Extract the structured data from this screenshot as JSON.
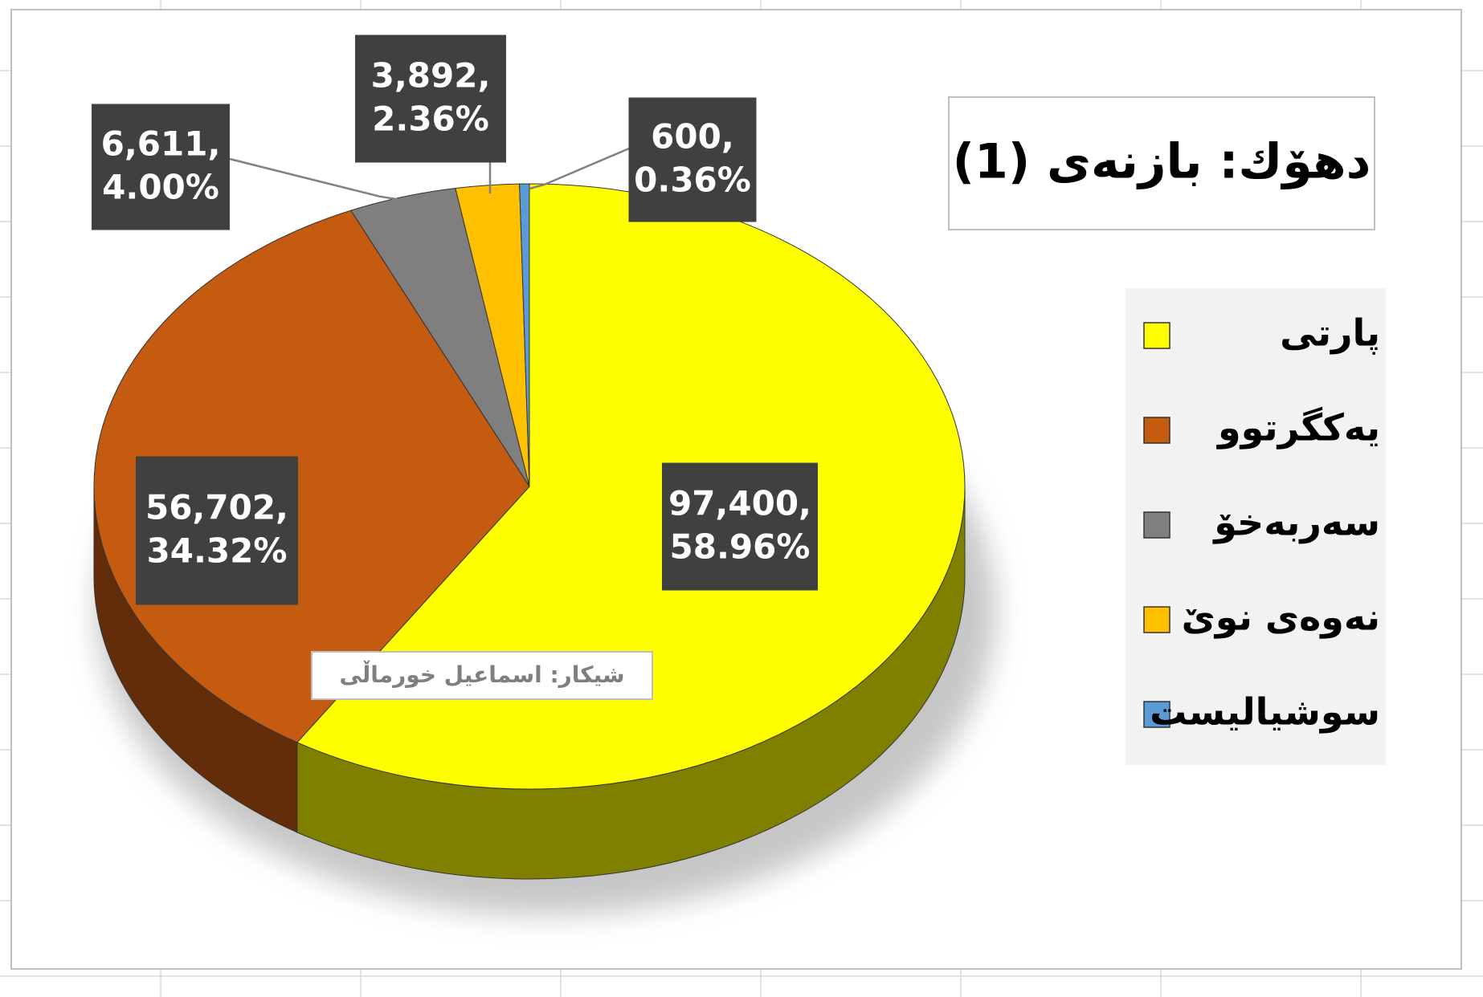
{
  "chart_data": {
    "type": "pie",
    "title": "دهۆك: بازنەی (1)",
    "categories": [
      "پارتی",
      "یەکگرتوو",
      "سەربەخۆ",
      "نەوەی نوێ",
      "سوشیالیست"
    ],
    "values": [
      97400,
      56702,
      6611,
      3892,
      600
    ],
    "value_labels": [
      "97,400,",
      "56,702,",
      "6,611,",
      "3,892,",
      "600,"
    ],
    "percentages": [
      58.96,
      34.32,
      4.0,
      2.36,
      0.36
    ],
    "percentage_labels": [
      "58.96%",
      "34.32%",
      "4.00%",
      "2.36%",
      "0.36%"
    ],
    "colors": [
      "#ffff00",
      "#c55a11",
      "#7f7f7f",
      "#ffc000",
      "#5b9bd5"
    ],
    "annotation": "شیکار: اسماعیل خورماڵی",
    "legend": "right"
  }
}
